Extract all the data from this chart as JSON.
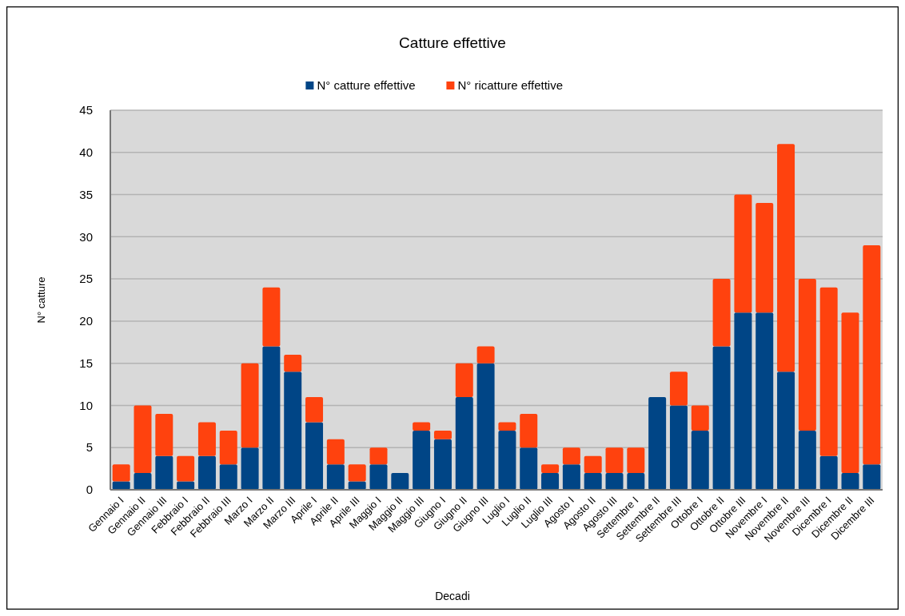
{
  "chart_data": {
    "type": "bar",
    "title": "Catture effettive",
    "xlabel": "Decadi",
    "ylabel": "N° catture",
    "stacked": true,
    "legend": "top",
    "grid": "y",
    "categories": [
      "Gennaio I",
      "Gennaio II",
      "Gennaio III",
      "Febbraio I",
      "Febbraio II",
      "Febbraio III",
      "Marzo I",
      "Marzo II",
      "Marzo III",
      "Aprile I",
      "Aprile II",
      "Aprile III",
      "Maggio I",
      "Maggio II",
      "Maggio III",
      "Giugno I",
      "Giugno II",
      "Giugno III",
      "Luglio I",
      "Luglio II",
      "Luglio III",
      "Agosto I",
      "Agosto II",
      "Agosto III",
      "Settembre I",
      "Settembre II",
      "Settembre III",
      "Ottobre I",
      "Ottobre II",
      "Ottobre III",
      "Novembre I",
      "Novembre II",
      "Novembre III",
      "Dicembre I",
      "Dicembre II",
      "Dicembre III"
    ],
    "series": [
      {
        "name": "N° catture effettive",
        "color": "#004586",
        "values": [
          1,
          2,
          4,
          1,
          4,
          3,
          5,
          17,
          14,
          8,
          3,
          1,
          3,
          2,
          7,
          6,
          11,
          15,
          7,
          5,
          2,
          3,
          2,
          2,
          2,
          11,
          10,
          7,
          17,
          21,
          21,
          14,
          7,
          4,
          2,
          3
        ]
      },
      {
        "name": "N° ricatture effettive",
        "color": "#ff420e",
        "values": [
          2,
          8,
          5,
          3,
          4,
          4,
          10,
          7,
          2,
          3,
          3,
          2,
          2,
          0,
          1,
          1,
          4,
          2,
          1,
          4,
          1,
          2,
          2,
          3,
          3,
          0,
          4,
          3,
          8,
          14,
          13,
          27,
          18,
          20,
          19,
          26
        ]
      }
    ],
    "ylim": [
      0,
      45
    ],
    "yticks": [
      0,
      5,
      10,
      15,
      20,
      25,
      30,
      35,
      40,
      45
    ]
  }
}
